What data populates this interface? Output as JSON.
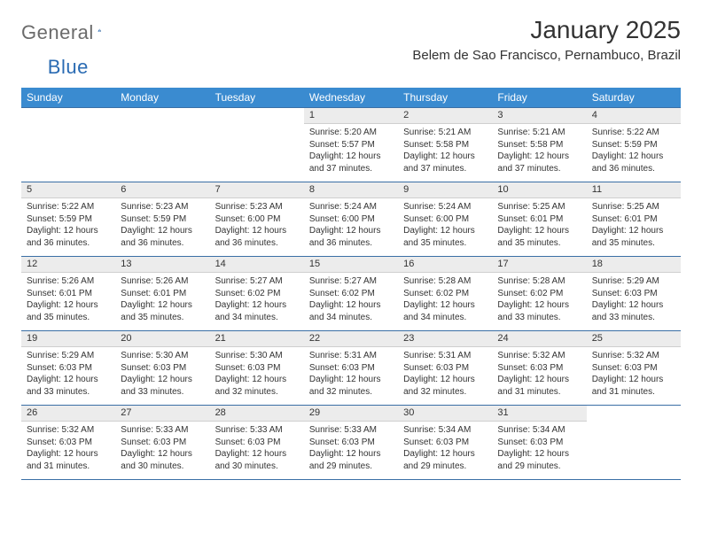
{
  "logo": {
    "main": "General",
    "accent": "Blue"
  },
  "title": "January 2025",
  "location": "Belem de Sao Francisco, Pernambuco, Brazil",
  "colors": {
    "header_bg": "#3a8bd0",
    "header_fg": "#ffffff",
    "daynum_bg": "#ececec",
    "border": "#3a6fa5",
    "logo_gray": "#6b6b6b",
    "logo_blue": "#2a6bb3",
    "text": "#333333",
    "background": "#ffffff"
  },
  "day_headers": [
    "Sunday",
    "Monday",
    "Tuesday",
    "Wednesday",
    "Thursday",
    "Friday",
    "Saturday"
  ],
  "weeks": [
    [
      null,
      null,
      null,
      {
        "n": "1",
        "sr": "5:20 AM",
        "ss": "5:57 PM",
        "dl": "12 hours and 37 minutes."
      },
      {
        "n": "2",
        "sr": "5:21 AM",
        "ss": "5:58 PM",
        "dl": "12 hours and 37 minutes."
      },
      {
        "n": "3",
        "sr": "5:21 AM",
        "ss": "5:58 PM",
        "dl": "12 hours and 37 minutes."
      },
      {
        "n": "4",
        "sr": "5:22 AM",
        "ss": "5:59 PM",
        "dl": "12 hours and 36 minutes."
      }
    ],
    [
      {
        "n": "5",
        "sr": "5:22 AM",
        "ss": "5:59 PM",
        "dl": "12 hours and 36 minutes."
      },
      {
        "n": "6",
        "sr": "5:23 AM",
        "ss": "5:59 PM",
        "dl": "12 hours and 36 minutes."
      },
      {
        "n": "7",
        "sr": "5:23 AM",
        "ss": "6:00 PM",
        "dl": "12 hours and 36 minutes."
      },
      {
        "n": "8",
        "sr": "5:24 AM",
        "ss": "6:00 PM",
        "dl": "12 hours and 36 minutes."
      },
      {
        "n": "9",
        "sr": "5:24 AM",
        "ss": "6:00 PM",
        "dl": "12 hours and 35 minutes."
      },
      {
        "n": "10",
        "sr": "5:25 AM",
        "ss": "6:01 PM",
        "dl": "12 hours and 35 minutes."
      },
      {
        "n": "11",
        "sr": "5:25 AM",
        "ss": "6:01 PM",
        "dl": "12 hours and 35 minutes."
      }
    ],
    [
      {
        "n": "12",
        "sr": "5:26 AM",
        "ss": "6:01 PM",
        "dl": "12 hours and 35 minutes."
      },
      {
        "n": "13",
        "sr": "5:26 AM",
        "ss": "6:01 PM",
        "dl": "12 hours and 35 minutes."
      },
      {
        "n": "14",
        "sr": "5:27 AM",
        "ss": "6:02 PM",
        "dl": "12 hours and 34 minutes."
      },
      {
        "n": "15",
        "sr": "5:27 AM",
        "ss": "6:02 PM",
        "dl": "12 hours and 34 minutes."
      },
      {
        "n": "16",
        "sr": "5:28 AM",
        "ss": "6:02 PM",
        "dl": "12 hours and 34 minutes."
      },
      {
        "n": "17",
        "sr": "5:28 AM",
        "ss": "6:02 PM",
        "dl": "12 hours and 33 minutes."
      },
      {
        "n": "18",
        "sr": "5:29 AM",
        "ss": "6:03 PM",
        "dl": "12 hours and 33 minutes."
      }
    ],
    [
      {
        "n": "19",
        "sr": "5:29 AM",
        "ss": "6:03 PM",
        "dl": "12 hours and 33 minutes."
      },
      {
        "n": "20",
        "sr": "5:30 AM",
        "ss": "6:03 PM",
        "dl": "12 hours and 33 minutes."
      },
      {
        "n": "21",
        "sr": "5:30 AM",
        "ss": "6:03 PM",
        "dl": "12 hours and 32 minutes."
      },
      {
        "n": "22",
        "sr": "5:31 AM",
        "ss": "6:03 PM",
        "dl": "12 hours and 32 minutes."
      },
      {
        "n": "23",
        "sr": "5:31 AM",
        "ss": "6:03 PM",
        "dl": "12 hours and 32 minutes."
      },
      {
        "n": "24",
        "sr": "5:32 AM",
        "ss": "6:03 PM",
        "dl": "12 hours and 31 minutes."
      },
      {
        "n": "25",
        "sr": "5:32 AM",
        "ss": "6:03 PM",
        "dl": "12 hours and 31 minutes."
      }
    ],
    [
      {
        "n": "26",
        "sr": "5:32 AM",
        "ss": "6:03 PM",
        "dl": "12 hours and 31 minutes."
      },
      {
        "n": "27",
        "sr": "5:33 AM",
        "ss": "6:03 PM",
        "dl": "12 hours and 30 minutes."
      },
      {
        "n": "28",
        "sr": "5:33 AM",
        "ss": "6:03 PM",
        "dl": "12 hours and 30 minutes."
      },
      {
        "n": "29",
        "sr": "5:33 AM",
        "ss": "6:03 PM",
        "dl": "12 hours and 29 minutes."
      },
      {
        "n": "30",
        "sr": "5:34 AM",
        "ss": "6:03 PM",
        "dl": "12 hours and 29 minutes."
      },
      {
        "n": "31",
        "sr": "5:34 AM",
        "ss": "6:03 PM",
        "dl": "12 hours and 29 minutes."
      },
      null
    ]
  ],
  "labels": {
    "sunrise": "Sunrise:",
    "sunset": "Sunset:",
    "daylight": "Daylight:"
  }
}
